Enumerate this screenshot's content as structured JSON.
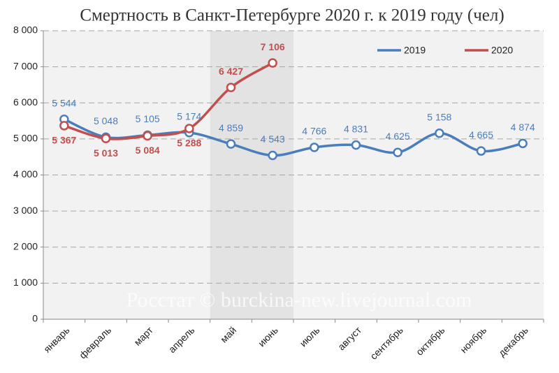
{
  "chart_data": {
    "type": "line",
    "title": "Смертность в Санкт-Петербурге 2020 г. к 2019 году (чел)",
    "watermark": "Росстат © burckina-new.livejournal.com",
    "categories": [
      "январь",
      "февраль",
      "март",
      "апрель",
      "май",
      "июнь",
      "июль",
      "август",
      "сентябрь",
      "октябрь",
      "ноябрь",
      "декабрь"
    ],
    "shaded_categories": [
      "май",
      "июнь"
    ],
    "series": [
      {
        "name": "2019",
        "color": "#4a7ebb",
        "values": [
          5544,
          5048,
          5105,
          5174,
          4859,
          4543,
          4766,
          4831,
          4625,
          5158,
          4665,
          4874
        ],
        "value_labels": [
          "5 544",
          "5 048",
          "5 105",
          "5 174",
          "4 859",
          "4 543",
          "4 766",
          "4 831",
          "4 625",
          "5 158",
          "4 665",
          "4 874"
        ]
      },
      {
        "name": "2020",
        "color": "#c0504d",
        "values": [
          5367,
          5013,
          5084,
          5288,
          6427,
          7106,
          null,
          null,
          null,
          null,
          null,
          null
        ],
        "value_labels": [
          "5 367",
          "5 013",
          "5 084",
          "5 288",
          "6 427",
          "7 106",
          null,
          null,
          null,
          null,
          null,
          null
        ]
      }
    ],
    "ylim": [
      0,
      8000
    ],
    "yticks": [
      0,
      {
        "value": 1000,
        "label": "1 000"
      },
      {
        "value": 2000,
        "label": "2 000"
      },
      {
        "value": 3000,
        "label": "3 000"
      },
      {
        "value": 4000,
        "label": "4 000"
      },
      {
        "value": 5000,
        "label": "5 000"
      },
      {
        "value": 6000,
        "label": "6 000"
      },
      {
        "value": 7000,
        "label": "7 000"
      },
      {
        "value": 8000,
        "label": "8 000"
      }
    ],
    "grid": true,
    "legend": "top-right"
  }
}
